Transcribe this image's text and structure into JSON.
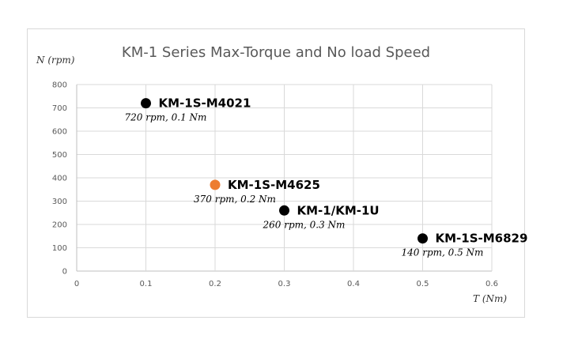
{
  "chart_data": {
    "type": "scatter",
    "title": "KM-1 Series Max-Torque and No load Speed",
    "xlabel": "T (Nm)",
    "ylabel": "N (rpm)",
    "xlim": [
      0,
      0.6
    ],
    "ylim": [
      0,
      800
    ],
    "x_ticks": [
      "0",
      "0.1",
      "0.2",
      "0.3",
      "0.4",
      "0.5",
      "0.6"
    ],
    "y_ticks": [
      "0",
      "100",
      "200",
      "300",
      "400",
      "500",
      "600",
      "700",
      "800"
    ],
    "grid": true,
    "points": [
      {
        "name": "KM-1S-M4021",
        "x": 0.1,
        "y": 720,
        "note": "720 rpm, 0.1 Nm",
        "color": "#000000"
      },
      {
        "name": "KM-1S-M4625",
        "x": 0.2,
        "y": 370,
        "note": "370 rpm, 0.2 Nm",
        "color": "#ed7d31"
      },
      {
        "name": "KM-1/KM-1U",
        "x": 0.3,
        "y": 260,
        "note": "260 rpm, 0.3 Nm",
        "color": "#000000"
      },
      {
        "name": "KM-1S-M6829",
        "x": 0.5,
        "y": 140,
        "note": "140 rpm, 0.5 Nm",
        "color": "#000000"
      }
    ]
  }
}
